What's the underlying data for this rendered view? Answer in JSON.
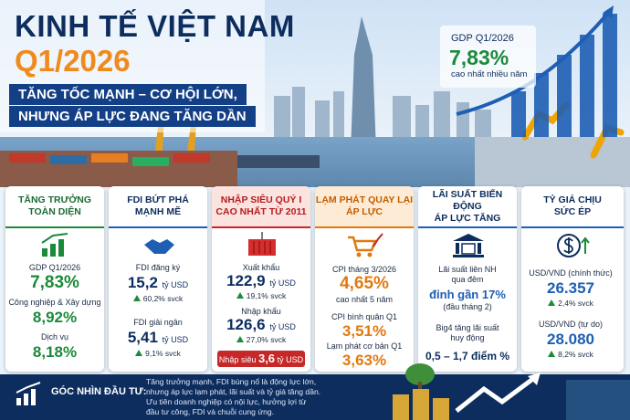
{
  "header": {
    "title": "KINH TẾ VIỆT NAM",
    "period": "Q1/2026",
    "tagline": [
      "TĂNG TỐC MẠNH – CƠ HỘI LỚN,",
      "NHƯNG ÁP LỰC ĐANG TĂNG DẦN"
    ]
  },
  "gdp_badge": {
    "label": "GDP Q1/2026",
    "value": "7,83%",
    "note": "cao nhất nhiều năm"
  },
  "cards": [
    {
      "title": [
        "TĂNG TRƯỞNG",
        "TOÀN DIỆN"
      ],
      "gdp": {
        "label": "GDP Q1/2026",
        "value": "7,83%"
      },
      "industry": {
        "label": "Công nghiệp & Xây dựng",
        "value": "8,92%"
      },
      "services": {
        "label": "Dịch vụ",
        "value": "8,18%"
      }
    },
    {
      "title": [
        "FDI BỨT PHÁ",
        "MẠNH MẼ"
      ],
      "registered": {
        "label": "FDI đăng ký",
        "value": "15,2",
        "unit": "tỷ USD",
        "change": "60,2% svck"
      },
      "disbursed": {
        "label": "FDI giải ngân",
        "value": "5,41",
        "unit": "tỷ USD",
        "change": "9,1% svck"
      }
    },
    {
      "title": [
        "NHẬP SIÊU QUÝ I",
        "CAO NHẤT TỪ 2011"
      ],
      "exports": {
        "label": "Xuất khẩu",
        "value": "122,9",
        "unit": "tỷ USD",
        "change": "19,1% svck"
      },
      "imports": {
        "label": "Nhập khẩu",
        "value": "126,6",
        "unit": "tỷ USD",
        "change": "27,0% svck"
      },
      "deficit": {
        "label": "Nhập siêu",
        "value": "3,6",
        "unit": "tỷ USD"
      }
    },
    {
      "title": [
        "LẠM PHÁT QUAY LẠI",
        "ÁP LỰC"
      ],
      "cpi_march": {
        "label": "CPI tháng 3/2026",
        "value": "4,65%",
        "note": "cao nhất 5 năm"
      },
      "cpi_avg": {
        "label": "CPI bình quân Q1",
        "value": "3,51%"
      },
      "core": {
        "label": "Lạm phát cơ bản Q1",
        "value": "3,63%"
      }
    },
    {
      "title": [
        "LÃI SUẤT BIẾN ĐỘNG",
        "ÁP LỰC TĂNG"
      ],
      "interbank": {
        "label": [
          "Lãi suất liên NH",
          "qua đêm"
        ],
        "value": "đỉnh gần 17%",
        "note": "(đầu tháng 2)"
      },
      "big4": {
        "label": [
          "Big4 tăng lãi suất",
          "huy động"
        ],
        "value": "0,5 – 1,7 điểm %"
      }
    },
    {
      "title": [
        "TỶ GIÁ CHỊU",
        "SỨC ÉP"
      ],
      "official": {
        "label": "USD/VND (chính thức)",
        "value": "26.357",
        "change": "2,4% svck"
      },
      "free": {
        "label": "USD/VND (tự do)",
        "value": "28.080",
        "change": "8,2% svck"
      }
    }
  ],
  "footer": {
    "label": "GÓC NHÌN ĐẦU TƯ:",
    "text": [
      "Tăng trưởng mạnh, FDI bùng nổ là động lực lớn,",
      "nhưng áp lực lạm phát, lãi suất và tỷ giá tăng dần.",
      "Ưu tiên doanh nghiệp có nội lực, hưởng lợi từ",
      "đầu tư công, FDI và chuỗi cung ứng."
    ]
  }
}
